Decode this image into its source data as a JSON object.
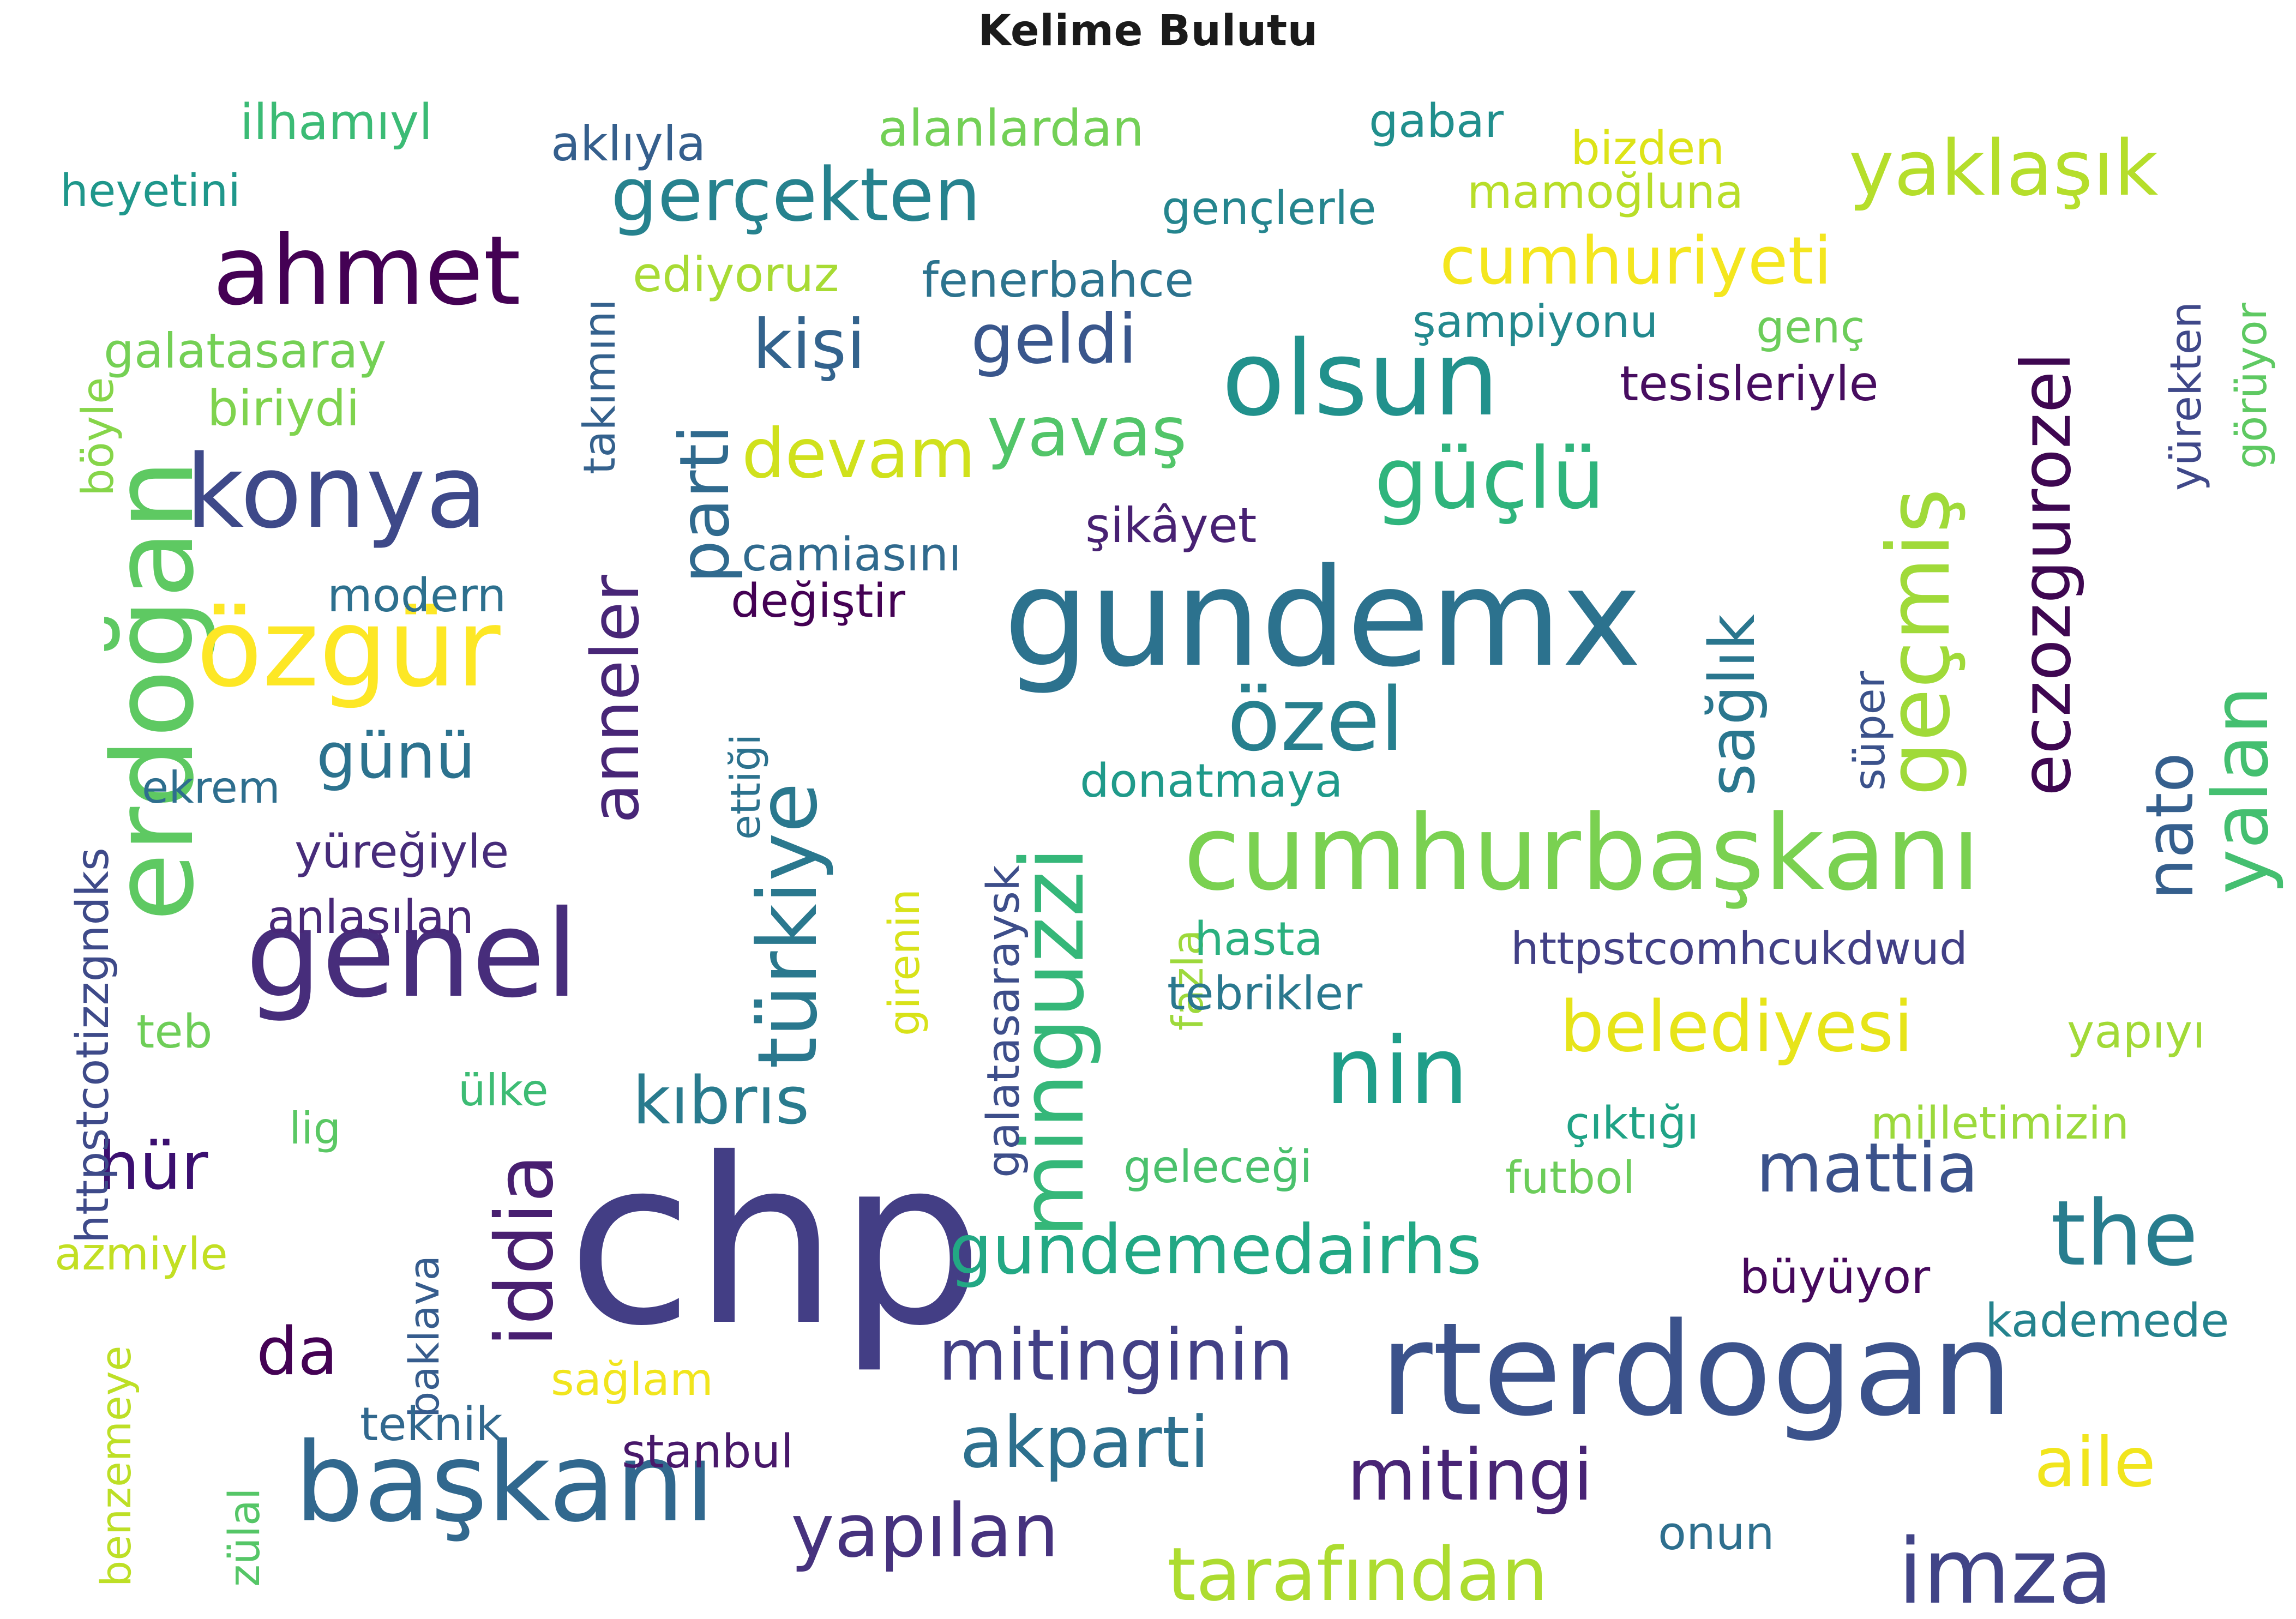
{
  "chart_data": {
    "type": "wordcloud",
    "title": "Kelime Bulutu",
    "words": [
      {
        "text": "chp",
        "weight": 10.0,
        "color": "#433e85"
      },
      {
        "text": "gundemx",
        "weight": 8.0,
        "color": "#2c728e"
      },
      {
        "text": "rterdogan",
        "weight": 7.0,
        "color": "#3b528b"
      },
      {
        "text": "genel",
        "weight": 6.6,
        "color": "#472d7b"
      },
      {
        "text": "cumhurbaşkanı",
        "weight": 6.4,
        "color": "#7ad151"
      },
      {
        "text": "erdoğan",
        "weight": 6.3,
        "color": "#5ec962"
      },
      {
        "text": "başkanı",
        "weight": 6.2,
        "color": "#31688e"
      },
      {
        "text": "özgür",
        "weight": 6.0,
        "color": "#fde725"
      },
      {
        "text": "olsun",
        "weight": 5.8,
        "color": "#21918c"
      },
      {
        "text": "konya",
        "weight": 5.6,
        "color": "#3e4989"
      },
      {
        "text": "minguzzi",
        "weight": 5.4,
        "color": "#35b779"
      },
      {
        "text": "ahmet",
        "weight": 5.3,
        "color": "#440154"
      },
      {
        "text": "nin",
        "weight": 5.1,
        "color": "#1f9e89"
      },
      {
        "text": "türkiye",
        "weight": 5.1,
        "color": "#2a788e"
      },
      {
        "text": "the",
        "weight": 5.0,
        "color": "#287d8e"
      },
      {
        "text": "imza",
        "weight": 5.0,
        "color": "#414487"
      },
      {
        "text": "geçmiş",
        "weight": 5.0,
        "color": "#a0da39"
      },
      {
        "text": "eczozgurozel",
        "weight": 4.8,
        "color": "#3e0751"
      },
      {
        "text": "özel",
        "weight": 4.8,
        "color": "#277f8e"
      },
      {
        "text": "yalan",
        "weight": 4.6,
        "color": "#44bf70"
      },
      {
        "text": "güçlü",
        "weight": 4.6,
        "color": "#2fb47c"
      },
      {
        "text": "iddia",
        "weight": 4.6,
        "color": "#481f70"
      },
      {
        "text": "yaklaşık",
        "weight": 4.5,
        "color": "#b5de2b"
      },
      {
        "text": "yapılan",
        "weight": 4.4,
        "color": "#46327e"
      },
      {
        "text": "nato",
        "weight": 4.3,
        "color": "#355f8d"
      },
      {
        "text": "tarafından",
        "weight": 4.3,
        "color": "#addc30"
      },
      {
        "text": "gerçekten",
        "weight": 4.3,
        "color": "#26828e"
      },
      {
        "text": "parti",
        "weight": 4.2,
        "color": "#306a8e"
      },
      {
        "text": "belediyesi",
        "weight": 4.2,
        "color": "#e7e419"
      },
      {
        "text": "anneler",
        "weight": 4.1,
        "color": "#482677"
      },
      {
        "text": "mitingi",
        "weight": 4.1,
        "color": "#482475"
      },
      {
        "text": "aile",
        "weight": 4.0,
        "color": "#f1e51d"
      },
      {
        "text": "mattia",
        "weight": 4.0,
        "color": "#3b528b"
      },
      {
        "text": "akparti",
        "weight": 4.0,
        "color": "#2d708e"
      },
      {
        "text": "mitinginin",
        "weight": 4.0,
        "color": "#424086"
      },
      {
        "text": "gundemedairhs",
        "weight": 3.9,
        "color": "#22a884"
      },
      {
        "text": "cumhuriyeti",
        "weight": 3.8,
        "color": "#f4e61e"
      },
      {
        "text": "yavaş",
        "weight": 3.8,
        "color": "#52c569"
      },
      {
        "text": "devam",
        "weight": 3.8,
        "color": "#d0e11c"
      },
      {
        "text": "geldi",
        "weight": 3.8,
        "color": "#39568c"
      },
      {
        "text": "kişi",
        "weight": 3.8,
        "color": "#33638d"
      },
      {
        "text": "sağlık",
        "weight": 3.7,
        "color": "#2a768e"
      },
      {
        "text": "hür",
        "weight": 3.6,
        "color": "#3b0f70"
      },
      {
        "text": "kıbrıs",
        "weight": 3.6,
        "color": "#297b8e"
      },
      {
        "text": "da",
        "weight": 3.5,
        "color": "#440154"
      },
      {
        "text": "günü",
        "weight": 3.4,
        "color": "#2c728e"
      },
      {
        "text": "httpstcotizzgndks",
        "weight": 3.0,
        "color": "#3e4a89"
      },
      {
        "text": "httpstcomhcukdwud",
        "weight": 3.0,
        "color": "#424086"
      },
      {
        "text": "galatasaraysk",
        "weight": 2.8,
        "color": "#3d4e8a"
      },
      {
        "text": "ilhamıyl",
        "weight": 2.8,
        "color": "#3bbb75"
      },
      {
        "text": "aklıyla",
        "weight": 2.8,
        "color": "#355f8d"
      },
      {
        "text": "alanlardan",
        "weight": 2.8,
        "color": "#73d056"
      },
      {
        "text": "gabar",
        "weight": 2.7,
        "color": "#218f8d"
      },
      {
        "text": "bizden",
        "weight": 2.7,
        "color": "#dde318"
      },
      {
        "text": "heyetini",
        "weight": 2.7,
        "color": "#1f978b"
      },
      {
        "text": "mamoğluna",
        "weight": 2.6,
        "color": "#b8de29"
      },
      {
        "text": "gençlerle",
        "weight": 2.6,
        "color": "#25858e"
      },
      {
        "text": "takımını",
        "weight": 2.6,
        "color": "#34618d"
      },
      {
        "text": "ediyoruz",
        "weight": 2.6,
        "color": "#a8db34"
      },
      {
        "text": "fenerbahce",
        "weight": 2.7,
        "color": "#2c738e"
      },
      {
        "text": "yürekten",
        "weight": 2.6,
        "color": "#3f4889"
      },
      {
        "text": "görüyor",
        "weight": 2.5,
        "color": "#5ec962"
      },
      {
        "text": "galatasaray",
        "weight": 2.7,
        "color": "#74d055"
      },
      {
        "text": "şampiyonu",
        "weight": 2.6,
        "color": "#23898e"
      },
      {
        "text": "genç",
        "weight": 2.5,
        "color": "#6ccd5a"
      },
      {
        "text": "böyle",
        "weight": 2.5,
        "color": "#86d549"
      },
      {
        "text": "biriydi",
        "weight": 2.7,
        "color": "#7fd34e"
      },
      {
        "text": "tesisleriyle",
        "weight": 2.7,
        "color": "#470d60"
      },
      {
        "text": "şikâyet",
        "weight": 2.6,
        "color": "#482173"
      },
      {
        "text": "camiasını",
        "weight": 2.6,
        "color": "#306a8e"
      },
      {
        "text": "modern",
        "weight": 2.6,
        "color": "#2d708e"
      },
      {
        "text": "değiştir",
        "weight": 2.6,
        "color": "#440154"
      },
      {
        "text": "süper",
        "weight": 2.5,
        "color": "#3b528b"
      },
      {
        "text": "ettiği",
        "weight": 2.5,
        "color": "#2c728e"
      },
      {
        "text": "ekrem",
        "weight": 2.5,
        "color": "#2e6e8e"
      },
      {
        "text": "donatmaya",
        "weight": 2.6,
        "color": "#1f9a8a"
      },
      {
        "text": "yüreğiyle",
        "weight": 2.6,
        "color": "#472c7a"
      },
      {
        "text": "girenin",
        "weight": 2.5,
        "color": "#d8e219"
      },
      {
        "text": "fazla",
        "weight": 2.5,
        "color": "#9dd93b"
      },
      {
        "text": "anlaşılan",
        "weight": 2.6,
        "color": "#482878"
      },
      {
        "text": "hasta",
        "weight": 2.5,
        "color": "#2ab07f"
      },
      {
        "text": "tebrikler",
        "weight": 2.6,
        "color": "#2a788e"
      },
      {
        "text": "teb",
        "weight": 2.5,
        "color": "#6ece58"
      },
      {
        "text": "yapıyı",
        "weight": 2.6,
        "color": "#a2da37"
      },
      {
        "text": "ülke",
        "weight": 2.4,
        "color": "#3dbc74"
      },
      {
        "text": "lig",
        "weight": 2.4,
        "color": "#5ac864"
      },
      {
        "text": "çıktığı",
        "weight": 2.5,
        "color": "#20a386"
      },
      {
        "text": "milletimizin",
        "weight": 2.6,
        "color": "#9bd93c"
      },
      {
        "text": "geleceği",
        "weight": 2.5,
        "color": "#4ac16d"
      },
      {
        "text": "futbol",
        "weight": 2.5,
        "color": "#6ccd5a"
      },
      {
        "text": "baklava",
        "weight": 2.5,
        "color": "#365c8d"
      },
      {
        "text": "azmiyle",
        "weight": 2.6,
        "color": "#c2df23"
      },
      {
        "text": "büyüyor",
        "weight": 2.6,
        "color": "#46085c"
      },
      {
        "text": "kademede",
        "weight": 2.6,
        "color": "#25838e"
      },
      {
        "text": "benzemeye",
        "weight": 2.5,
        "color": "#bddf26"
      },
      {
        "text": "sağlam",
        "weight": 2.5,
        "color": "#f1e51d"
      },
      {
        "text": "teknik",
        "weight": 2.6,
        "color": "#31688e"
      },
      {
        "text": "stanbul",
        "weight": 2.6,
        "color": "#48186a"
      },
      {
        "text": "onun",
        "weight": 2.5,
        "color": "#2e6f8e"
      },
      {
        "text": "zülal",
        "weight": 2.5,
        "color": "#55c667"
      }
    ]
  }
}
